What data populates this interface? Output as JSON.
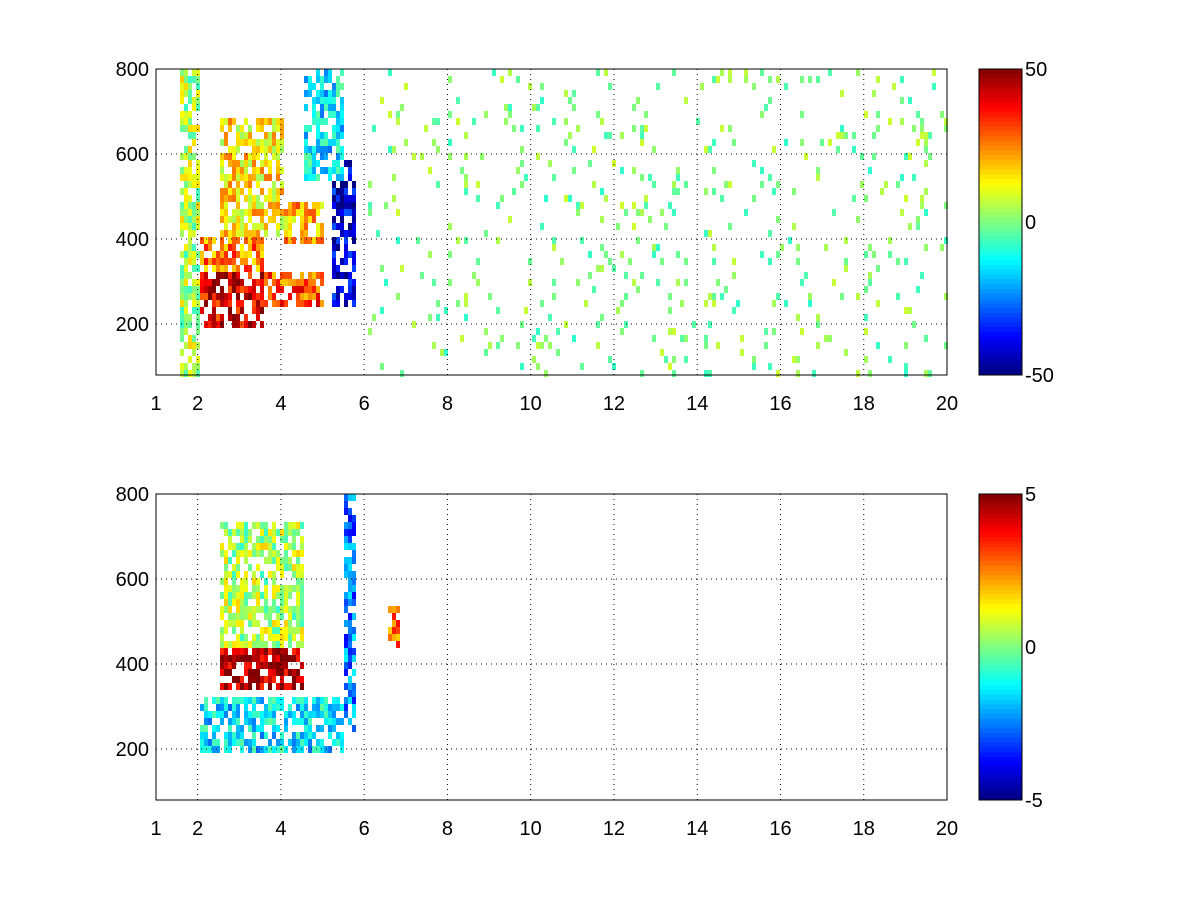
{
  "chart_data": [
    {
      "type": "heatmap",
      "title": "",
      "xlabel": "",
      "ylabel": "",
      "xlim": [
        1,
        20
      ],
      "ylim": [
        80,
        800
      ],
      "x_tick_labels": [
        "1",
        "2",
        "4",
        "6",
        "8",
        "10",
        "12",
        "14",
        "16",
        "18",
        "20"
      ],
      "y_tick_labels": [
        "200",
        "400",
        "600",
        "800"
      ],
      "grid": true,
      "colorbar": {
        "min": -50,
        "max": 50,
        "tick_labels": [
          "50",
          "0",
          "-50"
        ],
        "colormap": "jet"
      },
      "regions": [
        {
          "x": [
            2.0,
            3.5
          ],
          "y": [
            200,
            330
          ],
          "value": 40
        },
        {
          "x": [
            3.5,
            5.0
          ],
          "y": [
            250,
            330
          ],
          "value": 30
        },
        {
          "x": [
            2.0,
            3.5
          ],
          "y": [
            330,
            420
          ],
          "value": 25
        },
        {
          "x": [
            2.5,
            4.0
          ],
          "y": [
            420,
            700
          ],
          "value": 15
        },
        {
          "x": [
            4.0,
            5.0
          ],
          "y": [
            400,
            500
          ],
          "value": 20
        },
        {
          "x": [
            4.5,
            5.5
          ],
          "y": [
            550,
            800
          ],
          "value": -15
        },
        {
          "x": [
            5.2,
            5.8
          ],
          "y": [
            250,
            600
          ],
          "value": -40
        },
        {
          "x": [
            1.5,
            2.0
          ],
          "y": [
            80,
            800
          ],
          "value": 5
        }
      ],
      "scatter_from_x": 6,
      "scatter_value_range": [
        -8,
        8
      ]
    },
    {
      "type": "heatmap",
      "title": "",
      "xlabel": "",
      "ylabel": "",
      "xlim": [
        1,
        20
      ],
      "ylim": [
        80,
        800
      ],
      "x_tick_labels": [
        "1",
        "2",
        "4",
        "6",
        "8",
        "10",
        "12",
        "14",
        "16",
        "18",
        "20"
      ],
      "y_tick_labels": [
        "200",
        "400",
        "600",
        "800"
      ],
      "grid": true,
      "colorbar": {
        "min": -5,
        "max": 5,
        "tick_labels": [
          "5",
          "0",
          "-5"
        ],
        "colormap": "jet"
      },
      "regions": [
        {
          "x": [
            2.5,
            4.5
          ],
          "y": [
            350,
            450
          ],
          "value": 4.5
        },
        {
          "x": [
            2.0,
            5.5
          ],
          "y": [
            200,
            330
          ],
          "value": -1.5
        },
        {
          "x": [
            2.5,
            4.5
          ],
          "y": [
            450,
            750
          ],
          "value": 0.5
        },
        {
          "x": [
            5.5,
            5.8
          ],
          "y": [
            250,
            800
          ],
          "value": -2.5
        },
        {
          "x": [
            6.5,
            6.8
          ],
          "y": [
            450,
            550
          ],
          "value": 2.5
        }
      ]
    }
  ]
}
